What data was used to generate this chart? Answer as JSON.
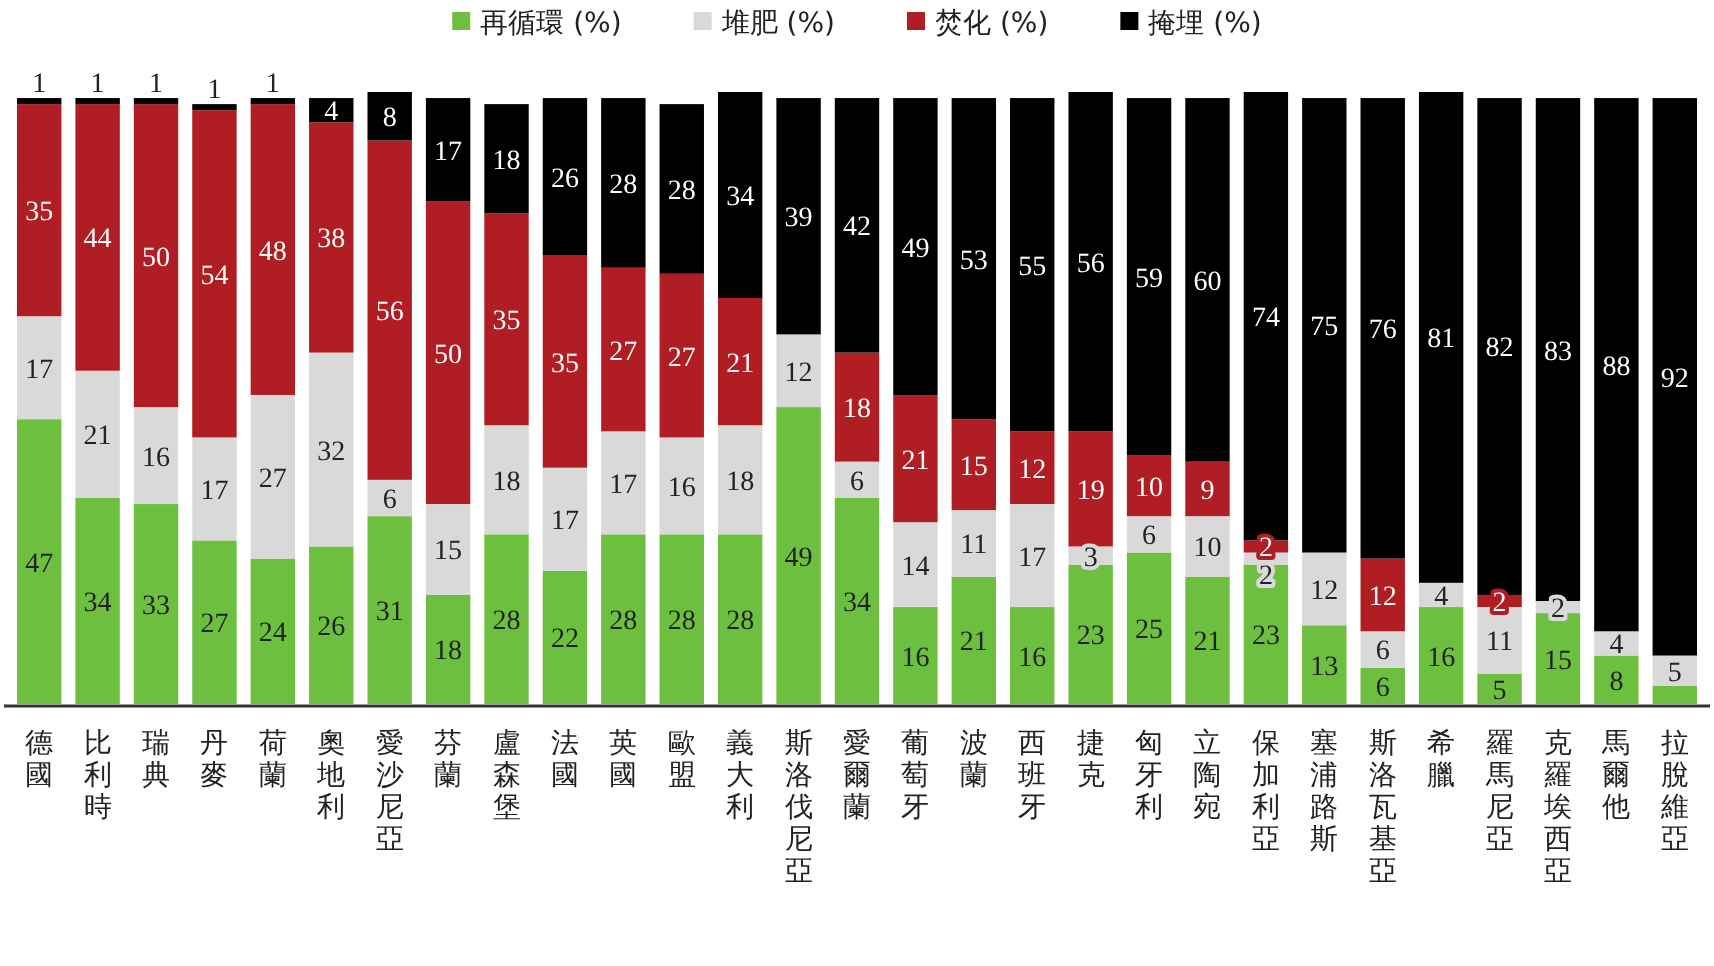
{
  "chart_data": {
    "type": "bar",
    "stacked": true,
    "legend": "top",
    "categories": [
      "德國",
      "比利時",
      "瑞典",
      "丹麥",
      "荷蘭",
      "奧地利",
      "愛沙尼亞",
      "芬蘭",
      "盧森堡",
      "法國",
      "英國",
      "歐盟",
      "義大利",
      "斯洛伐尼亞",
      "愛爾蘭",
      "葡萄牙",
      "波蘭",
      "西班牙",
      "捷克",
      "匈牙利",
      "立陶宛",
      "保加利亞",
      "塞浦路斯",
      "斯洛瓦基亞",
      "希臘",
      "羅馬尼亞",
      "克羅埃西亞",
      "馬爾他",
      "拉脫維亞"
    ],
    "series": [
      {
        "name": "再循環 (%)",
        "color": "#6dbf3f",
        "values": [
          47,
          34,
          33,
          27,
          24,
          26,
          31,
          18,
          28,
          22,
          28,
          28,
          28,
          49,
          34,
          16,
          21,
          16,
          23,
          25,
          21,
          23,
          13,
          6,
          16,
          5,
          15,
          8,
          3
        ],
        "value_labels": [
          "47",
          "34",
          "33",
          "27",
          "24",
          "26",
          "31",
          "18",
          "28",
          "22",
          "28",
          "28",
          "28",
          "49",
          "34",
          "16",
          "21",
          "16",
          "23",
          "25",
          "21",
          "23",
          "13",
          "6",
          "16",
          "5",
          "15",
          "8",
          null
        ]
      },
      {
        "name": "堆肥 (%)",
        "color": "#d9d9d9",
        "values": [
          17,
          21,
          16,
          17,
          27,
          32,
          6,
          15,
          18,
          17,
          17,
          16,
          18,
          12,
          6,
          14,
          11,
          17,
          3,
          6,
          10,
          2,
          12,
          6,
          4,
          11,
          2,
          4,
          5
        ],
        "value_labels": [
          "17",
          "21",
          "16",
          "17",
          "27",
          "32",
          "6",
          "15",
          "18",
          "17",
          "17",
          "16",
          "18",
          "12",
          "6",
          "14",
          "11",
          "17",
          "3",
          "6",
          "10",
          "2",
          "12",
          "6",
          "4",
          "11",
          "2",
          "4",
          "5"
        ]
      },
      {
        "name": "焚化 (%)",
        "color": "#b01e23",
        "values": [
          35,
          44,
          50,
          54,
          48,
          38,
          56,
          50,
          35,
          35,
          27,
          27,
          21,
          0,
          18,
          21,
          15,
          12,
          19,
          10,
          9,
          2,
          0,
          12,
          0,
          2,
          0,
          0,
          0
        ],
        "value_labels": [
          "35",
          "44",
          "50",
          "54",
          "48",
          "38",
          "56",
          "50",
          "35",
          "35",
          "27",
          "27",
          "21",
          null,
          "18",
          "21",
          "15",
          "12",
          "19",
          "10",
          "9",
          "2",
          null,
          "12",
          null,
          "2",
          null,
          null,
          null
        ]
      },
      {
        "name": "掩埋 (%)",
        "color": "#000000",
        "values": [
          1,
          1,
          1,
          1,
          1,
          4,
          8,
          17,
          18,
          26,
          28,
          28,
          34,
          39,
          42,
          49,
          53,
          55,
          56,
          59,
          60,
          74,
          75,
          76,
          81,
          82,
          83,
          88,
          92
        ],
        "value_labels": [
          "1",
          "1",
          "1",
          "1",
          "1",
          "4",
          "8",
          "17",
          "18",
          "26",
          "28",
          "28",
          "34",
          "39",
          "42",
          "49",
          "53",
          "55",
          "56",
          "59",
          "60",
          "74",
          "75",
          "76",
          "81",
          "82",
          "83",
          "88",
          "92"
        ]
      }
    ]
  }
}
